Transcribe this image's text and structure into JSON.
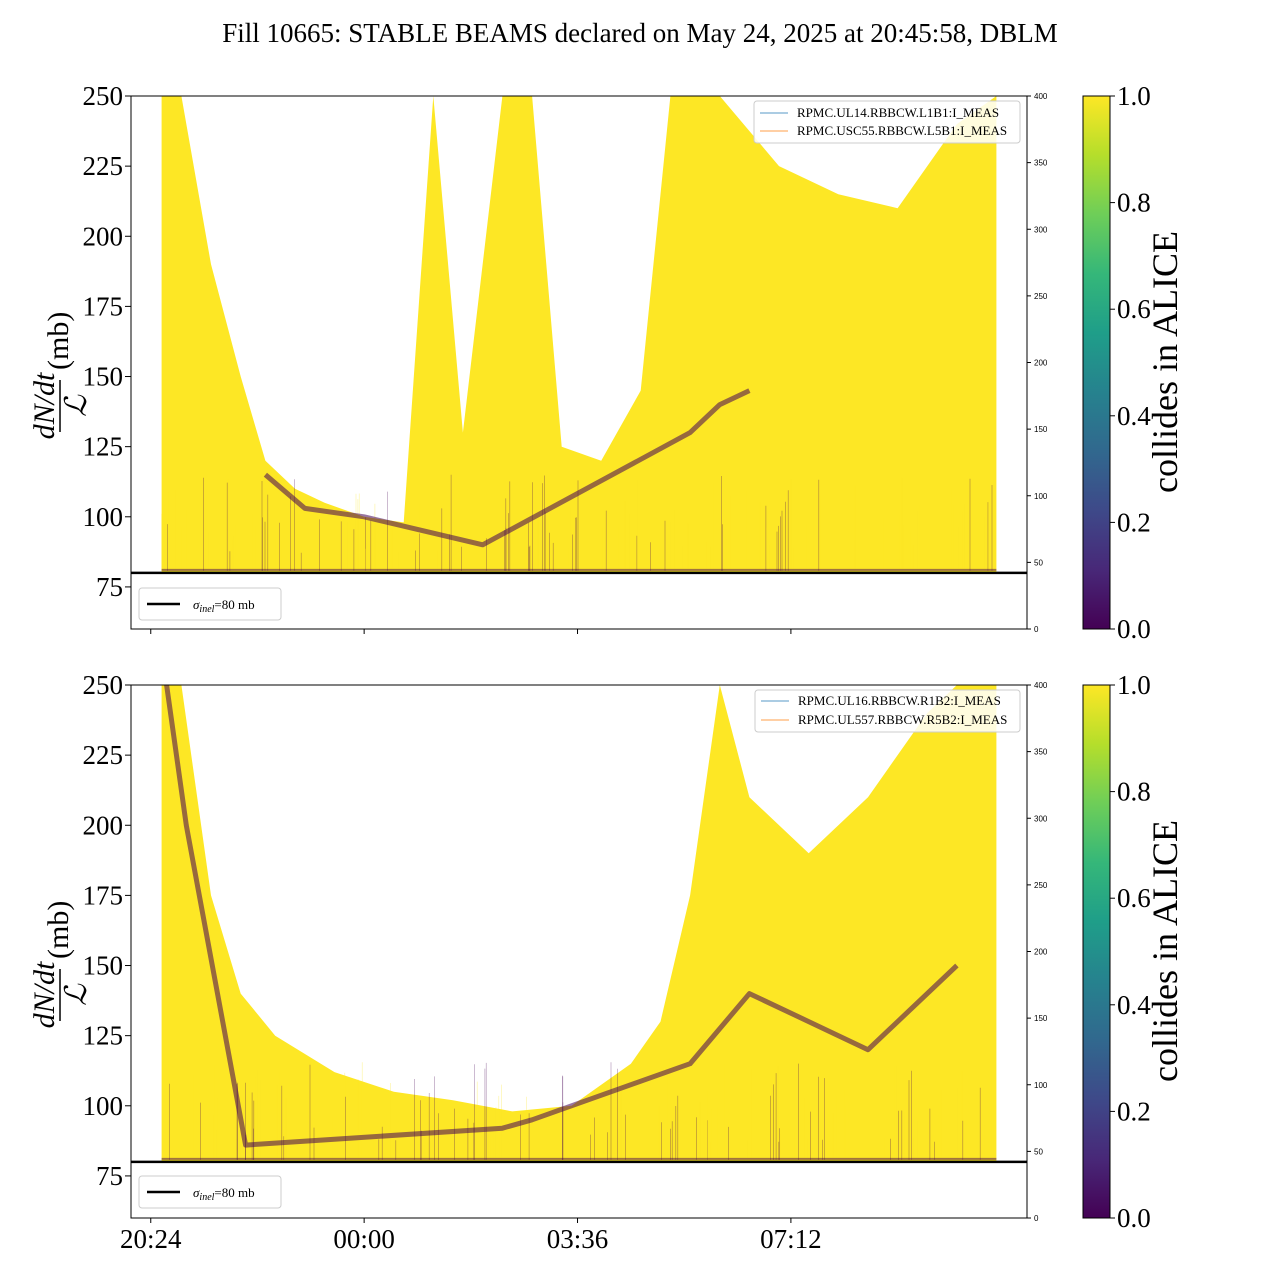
{
  "figure": {
    "title": "Fill 10665: STABLE BEAMS declared on May 24, 2025 at 20:45:58, DBLM"
  },
  "colors": {
    "yellow": "#fde725",
    "purple": "#440154",
    "line_blue": "#1f77b4",
    "line_orange": "#ff7f0e",
    "viridis": [
      "#440154",
      "#482878",
      "#3e4989",
      "#31688e",
      "#26828e",
      "#1f9e89",
      "#35b779",
      "#6ece58",
      "#b5de2b",
      "#fde725"
    ]
  },
  "chart_data": [
    {
      "type": "heatmap",
      "panel": "top",
      "ylabel_num": "dN/dt",
      "ylabel_den": "ℒ",
      "ylabel_unit": "(mb)",
      "ylim": [
        60,
        250
      ],
      "yticks": [
        "75",
        "100",
        "125",
        "150",
        "175",
        "200",
        "225",
        "250"
      ],
      "right_ylim": [
        0,
        400
      ],
      "right_yticks": [
        "0",
        "50",
        "100",
        "150",
        "200",
        "250",
        "300",
        "350",
        "400"
      ],
      "xlim": [
        "20:04",
        "11:11"
      ],
      "hline": {
        "value": 80,
        "label_sigma": "σ",
        "label_sub": "inel",
        "label_rest": "=80 mb"
      },
      "series": [
        {
          "name": "RPMC.UL14.RBBCW.L1B1:I_MEAS",
          "color": "#1f77b4"
        },
        {
          "name": "RPMC.USC55.RBBCW.L5B1:I_MEAS",
          "color": "#ff7f0e"
        }
      ],
      "density_upper_envelope": [
        [
          "20:35",
          250
        ],
        [
          "20:55",
          250
        ],
        [
          "21:25",
          190
        ],
        [
          "21:55",
          150
        ],
        [
          "22:20",
          120
        ],
        [
          "22:50",
          110
        ],
        [
          "23:20",
          105
        ],
        [
          "00:00",
          100
        ],
        [
          "00:40",
          98
        ],
        [
          "01:10",
          250
        ],
        [
          "01:40",
          130
        ],
        [
          "02:20",
          250
        ],
        [
          "02:50",
          250
        ],
        [
          "03:20",
          125
        ],
        [
          "04:00",
          120
        ],
        [
          "04:40",
          145
        ],
        [
          "05:10",
          250
        ],
        [
          "06:00",
          250
        ],
        [
          "07:00",
          225
        ],
        [
          "08:00",
          215
        ],
        [
          "09:00",
          210
        ],
        [
          "10:00",
          240
        ],
        [
          "10:40",
          250
        ]
      ],
      "purple_band": [
        [
          "22:20",
          115
        ],
        [
          "23:00",
          103
        ],
        [
          "00:00",
          100
        ],
        [
          "01:00",
          95
        ],
        [
          "02:00",
          90
        ],
        [
          "05:30",
          130
        ],
        [
          "06:00",
          140
        ],
        [
          "06:30",
          145
        ]
      ],
      "colorbar": {
        "label": "collides in ALICE",
        "ticks": [
          "0.0",
          "0.2",
          "0.4",
          "0.6",
          "0.8",
          "1.0"
        ]
      }
    },
    {
      "type": "heatmap",
      "panel": "bottom",
      "ylabel_num": "dN/dt",
      "ylabel_den": "ℒ",
      "ylabel_unit": "(mb)",
      "ylim": [
        60,
        250
      ],
      "yticks": [
        "75",
        "100",
        "125",
        "150",
        "175",
        "200",
        "225",
        "250"
      ],
      "right_ylim": [
        0,
        400
      ],
      "right_yticks": [
        "0",
        "50",
        "100",
        "150",
        "200",
        "250",
        "300",
        "350",
        "400"
      ],
      "xlim": [
        "20:04",
        "11:11"
      ],
      "xticks": [
        "20:24",
        "00:00",
        "03:36",
        "07:12"
      ],
      "hline": {
        "value": 80,
        "label_sigma": "σ",
        "label_sub": "inel",
        "label_rest": "=80 mb"
      },
      "series": [
        {
          "name": "RPMC.UL16.RBBCW.R1B2:I_MEAS",
          "color": "#1f77b4"
        },
        {
          "name": "RPMC.UL557.RBBCW.R5B2:I_MEAS",
          "color": "#ff7f0e"
        }
      ],
      "density_upper_envelope": [
        [
          "20:35",
          250
        ],
        [
          "20:55",
          250
        ],
        [
          "21:25",
          175
        ],
        [
          "21:55",
          140
        ],
        [
          "22:30",
          125
        ],
        [
          "23:30",
          112
        ],
        [
          "00:30",
          105
        ],
        [
          "01:30",
          102
        ],
        [
          "02:30",
          98
        ],
        [
          "03:30",
          100
        ],
        [
          "04:30",
          115
        ],
        [
          "05:00",
          130
        ],
        [
          "05:30",
          175
        ],
        [
          "06:00",
          250
        ],
        [
          "06:30",
          210
        ],
        [
          "07:30",
          190
        ],
        [
          "08:30",
          210
        ],
        [
          "09:30",
          240
        ],
        [
          "10:00",
          250
        ],
        [
          "10:40",
          250
        ]
      ],
      "purple_band": [
        [
          "20:40",
          250
        ],
        [
          "21:00",
          200
        ],
        [
          "22:00",
          86
        ],
        [
          "02:20",
          92
        ],
        [
          "02:50",
          95
        ],
        [
          "05:30",
          115
        ],
        [
          "06:30",
          140
        ],
        [
          "07:30",
          130
        ],
        [
          "08:30",
          120
        ],
        [
          "10:00",
          150
        ]
      ],
      "colorbar": {
        "label": "collides in ALICE",
        "ticks": [
          "0.0",
          "0.2",
          "0.4",
          "0.6",
          "0.8",
          "1.0"
        ]
      }
    }
  ]
}
